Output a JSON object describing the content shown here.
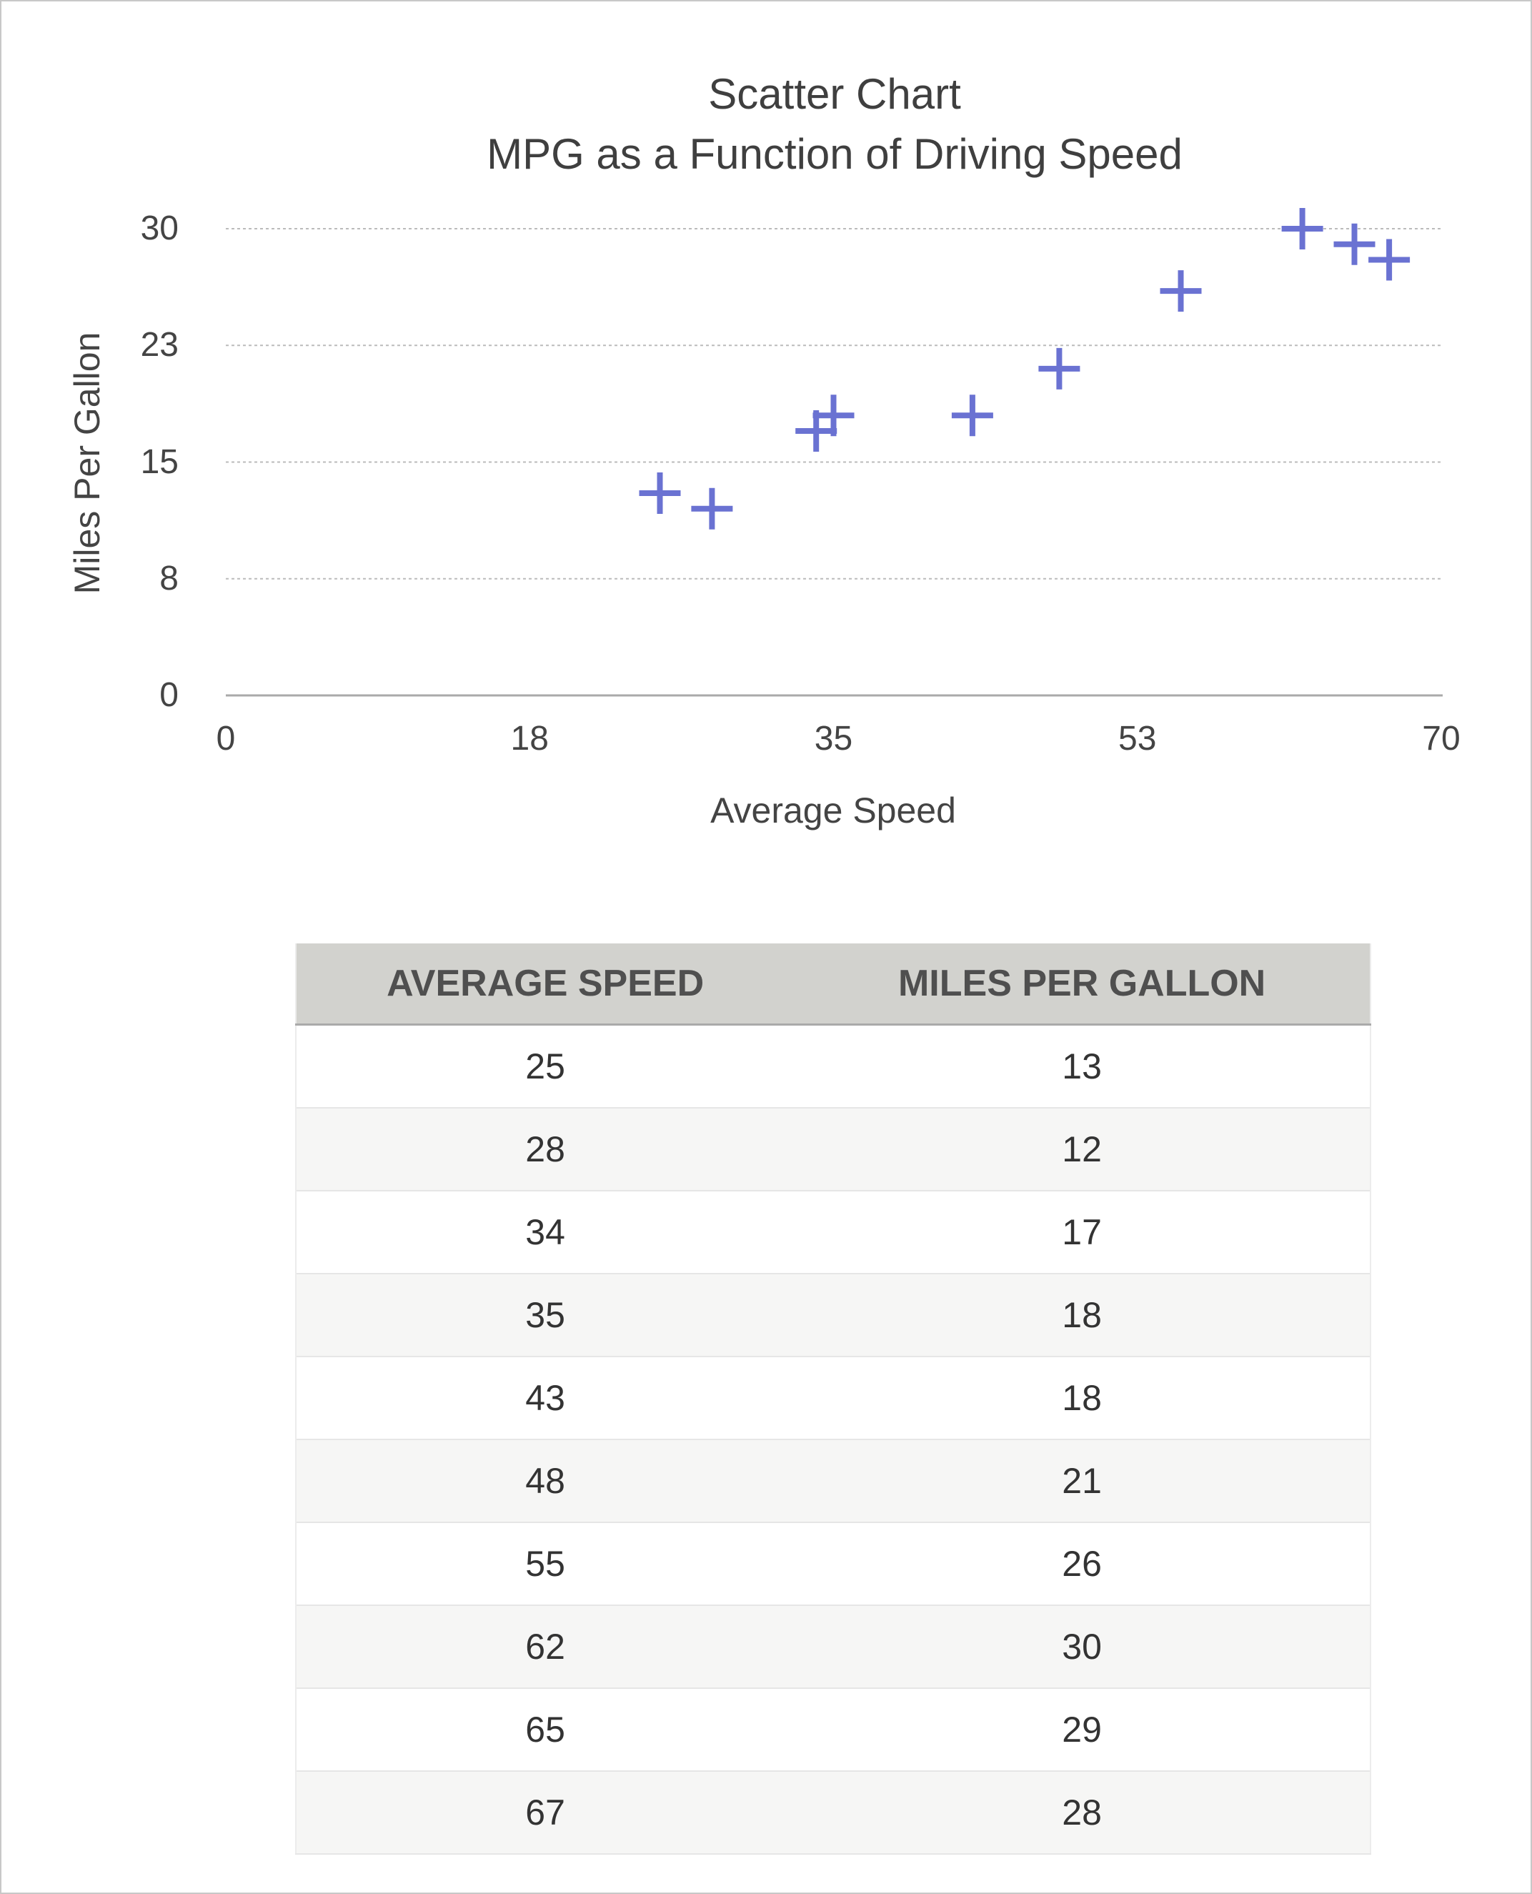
{
  "chart_data": {
    "type": "scatter",
    "title": "Scatter Chart",
    "subtitle": "MPG as a Function of Driving Speed",
    "xlabel": "Average Speed",
    "ylabel": "Miles Per Gallon",
    "xlim": [
      0,
      70
    ],
    "ylim": [
      0,
      30
    ],
    "xticks": [
      {
        "value": 0,
        "label": "0"
      },
      {
        "value": 17.5,
        "label": "18"
      },
      {
        "value": 35,
        "label": "35"
      },
      {
        "value": 52.5,
        "label": "53"
      },
      {
        "value": 70,
        "label": "70"
      }
    ],
    "yticks": [
      {
        "value": 0,
        "label": "0"
      },
      {
        "value": 7.5,
        "label": "8"
      },
      {
        "value": 15,
        "label": "15"
      },
      {
        "value": 22.5,
        "label": "23"
      },
      {
        "value": 30,
        "label": "30"
      }
    ],
    "grid": "horizontal-dotted",
    "marker": "plus",
    "marker_color": "#6a72d2",
    "x": [
      25,
      28,
      34,
      35,
      43,
      48,
      55,
      62,
      65,
      67
    ],
    "y": [
      13,
      12,
      17,
      18,
      18,
      21,
      26,
      30,
      29,
      28
    ]
  },
  "table": {
    "headers": [
      "AVERAGE SPEED",
      "MILES PER GALLON"
    ],
    "rows": [
      [
        "25",
        "13"
      ],
      [
        "28",
        "12"
      ],
      [
        "34",
        "17"
      ],
      [
        "35",
        "18"
      ],
      [
        "43",
        "18"
      ],
      [
        "48",
        "21"
      ],
      [
        "55",
        "26"
      ],
      [
        "62",
        "30"
      ],
      [
        "65",
        "29"
      ],
      [
        "67",
        "28"
      ]
    ]
  }
}
